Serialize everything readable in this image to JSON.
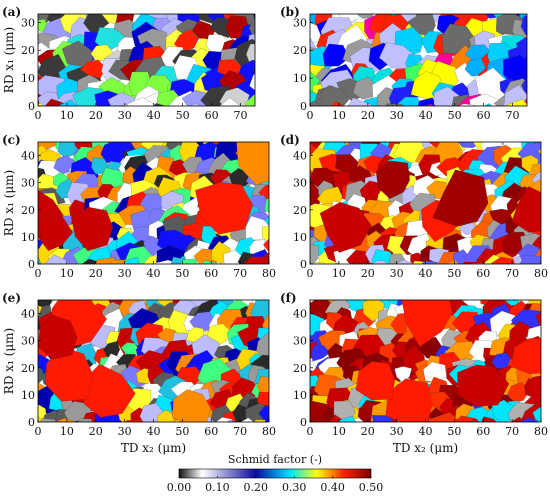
{
  "figure": {
    "panels": [
      {
        "label": "(a)",
        "ylabel": "RD x₁ (μm)",
        "xlabel": "",
        "xticks": [
          "0",
          "10",
          "20",
          "30",
          "40",
          "50",
          "60",
          "70"
        ],
        "yticks": [
          "0",
          "10",
          "20",
          "30"
        ],
        "xmax": 75,
        "ymax": 33,
        "palette": "low"
      },
      {
        "label": "(b)",
        "ylabel": "",
        "xlabel": "",
        "xticks": [
          "0",
          "10",
          "20",
          "30",
          "40",
          "50",
          "60",
          "70"
        ],
        "yticks": [
          "0",
          "10",
          "20",
          "30"
        ],
        "xmax": 75,
        "ymax": 33,
        "palette": "mid"
      },
      {
        "label": "(c)",
        "ylabel": "RD x₁ (μm)",
        "xlabel": "",
        "xticks": [
          "0",
          "10",
          "20",
          "30",
          "40",
          "50",
          "60",
          "70",
          "80"
        ],
        "yticks": [
          "0",
          "10",
          "20",
          "30",
          "40"
        ],
        "xmax": 80,
        "ymax": 45,
        "palette": "mix"
      },
      {
        "label": "(d)",
        "ylabel": "",
        "xlabel": "",
        "xticks": [
          "0",
          "10",
          "20",
          "30",
          "40",
          "50",
          "60",
          "70",
          "80"
        ],
        "yticks": [
          "0",
          "10",
          "20",
          "30",
          "40"
        ],
        "xmax": 80,
        "ymax": 45,
        "palette": "high"
      },
      {
        "label": "(e)",
        "ylabel": "RD x₁ (μm)",
        "xlabel": "TD x₂ (μm)",
        "xticks": [
          "0",
          "10",
          "20",
          "30",
          "40",
          "50",
          "60",
          "70",
          "80"
        ],
        "yticks": [
          "0",
          "10",
          "20",
          "30",
          "40"
        ],
        "xmax": 80,
        "ymax": 45,
        "palette": "mix"
      },
      {
        "label": "(f)",
        "ylabel": "",
        "xlabel": "TD x₂ (μm)",
        "xticks": [
          "0",
          "10",
          "20",
          "30",
          "40",
          "50",
          "60",
          "70",
          "80"
        ],
        "yticks": [
          "0",
          "10",
          "20",
          "30",
          "40"
        ],
        "xmax": 80,
        "ymax": 45,
        "palette": "veryhigh"
      }
    ],
    "colorbar": {
      "title": "Schmid factor (-)",
      "ticks": [
        "0.00",
        "0.10",
        "0.20",
        "0.30",
        "0.40",
        "0.50"
      ],
      "stops": [
        "#111111",
        "#ffffff",
        "#0a0aa0",
        "#00e5ff",
        "#ffff00",
        "#ff2000",
        "#7a0000"
      ]
    }
  }
}
